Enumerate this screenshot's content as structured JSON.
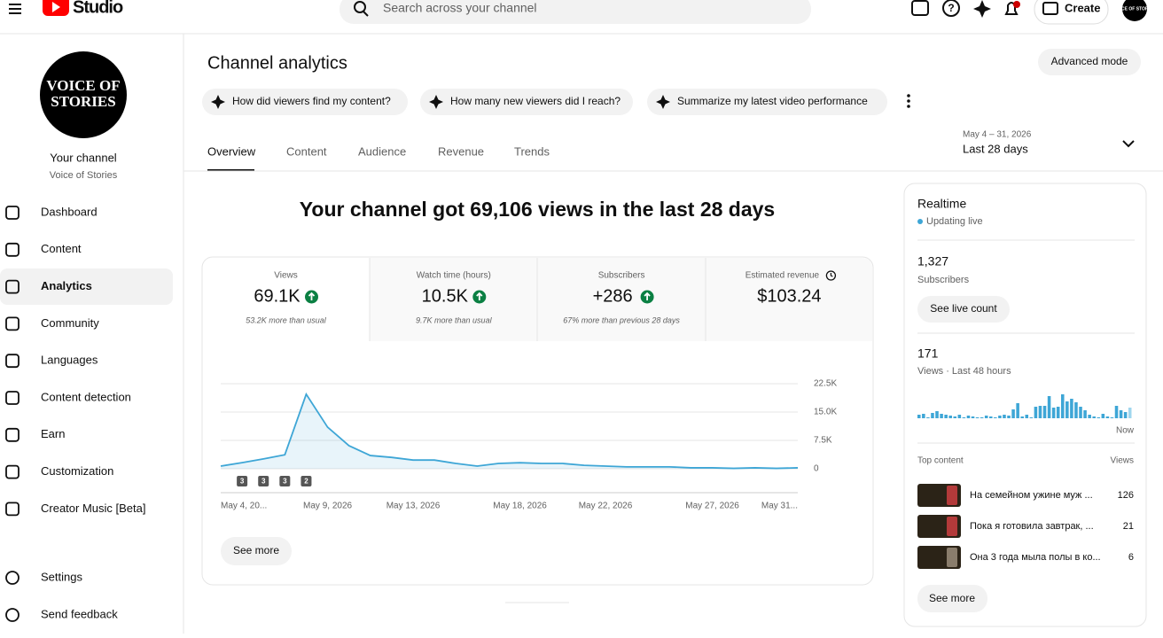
{
  "topbar": {
    "brand": "Studio",
    "search_placeholder": "Search across your channel",
    "create": "Create",
    "avatar": "VOICE OF STORIES"
  },
  "sidebar": {
    "avatar_text": "VOICE OF STORIES",
    "channel_label": "Your channel",
    "channel_name": "Voice of Stories",
    "nav": [
      "Dashboard",
      "Content",
      "Analytics",
      "Community",
      "Languages",
      "Content detection",
      "Earn",
      "Customization",
      "Creator Music [Beta]"
    ],
    "bottom": [
      "Settings",
      "Send feedback"
    ]
  },
  "header": {
    "title": "Channel analytics",
    "advanced": "Advanced mode",
    "prompts": [
      "How did viewers find my content?",
      "How many new viewers did I reach?",
      "Summarize my latest video performance"
    ],
    "tabs": [
      "Overview",
      "Content",
      "Audience",
      "Revenue",
      "Trends"
    ],
    "date_range": "May 4 – 31, 2026",
    "date_label": "Last 28 days"
  },
  "headline": "Your channel got 69,106 views in the last 28 days",
  "metrics": [
    {
      "label": "Views",
      "value": "69.1K",
      "note": "53.2K more than usual"
    },
    {
      "label": "Watch time (hours)",
      "value": "10.5K",
      "note": "9.7K more than usual"
    },
    {
      "label": "Subscribers",
      "value": "+286",
      "note": "67% more than previous 28 days"
    },
    {
      "label": "Estimated revenue",
      "value": "$103.24"
    }
  ],
  "chart_data": {
    "type": "line",
    "color": "#3ea6d6",
    "categories": [
      "May 4, 20...",
      null,
      null,
      null,
      null,
      "May 9, 2026",
      null,
      null,
      null,
      "May 13, 2026",
      null,
      null,
      null,
      null,
      "May 18, 2026",
      null,
      null,
      null,
      "May 22, 2026",
      null,
      null,
      null,
      null,
      "May 27, 2026",
      null,
      null,
      null,
      "May 31..."
    ],
    "values": [
      700,
      1600,
      2600,
      3700,
      19700,
      11000,
      6100,
      3500,
      3000,
      2300,
      2300,
      1400,
      700,
      1400,
      1600,
      1400,
      1400,
      900,
      700,
      500,
      500,
      500,
      250,
      250,
      100,
      250,
      100,
      250
    ],
    "ylim": [
      0,
      22500
    ],
    "yticks": [
      {
        "value": 22500,
        "label": "22.5K"
      },
      {
        "value": 15000,
        "label": "15.0K"
      },
      {
        "value": 7500,
        "label": "7.5K"
      },
      0
    ],
    "grid": true,
    "annotations": [
      "3",
      "3",
      "3",
      "2"
    ]
  },
  "see_more": "See more",
  "realtime": {
    "title": "Realtime",
    "status": "Updating live",
    "subscribers": "1,327",
    "subscribers_label": "Subscribers",
    "live_count": "See live count",
    "views": "171",
    "views_label": "Views · Last 48 hours",
    "bars": [
      4,
      5,
      1,
      6,
      8,
      5,
      4,
      3,
      2,
      4,
      1,
      3,
      2,
      1,
      1,
      3,
      2,
      1,
      3,
      4,
      3,
      10,
      17,
      2,
      4,
      1,
      13,
      14,
      14,
      25,
      12,
      13,
      27,
      19,
      22,
      18,
      13,
      9,
      4,
      2,
      1,
      5,
      2,
      1,
      14,
      9,
      7,
      12
    ],
    "now": "Now",
    "top_content": "Top content",
    "views_col": "Views",
    "items": [
      {
        "title": "На семейном ужине муж ...",
        "views": "126"
      },
      {
        "title": "Пока я готовила завтрак, ...",
        "views": "21"
      },
      {
        "title": "Она 3 года мыла полы в ко...",
        "views": "6"
      }
    ],
    "see_more": "See more"
  }
}
